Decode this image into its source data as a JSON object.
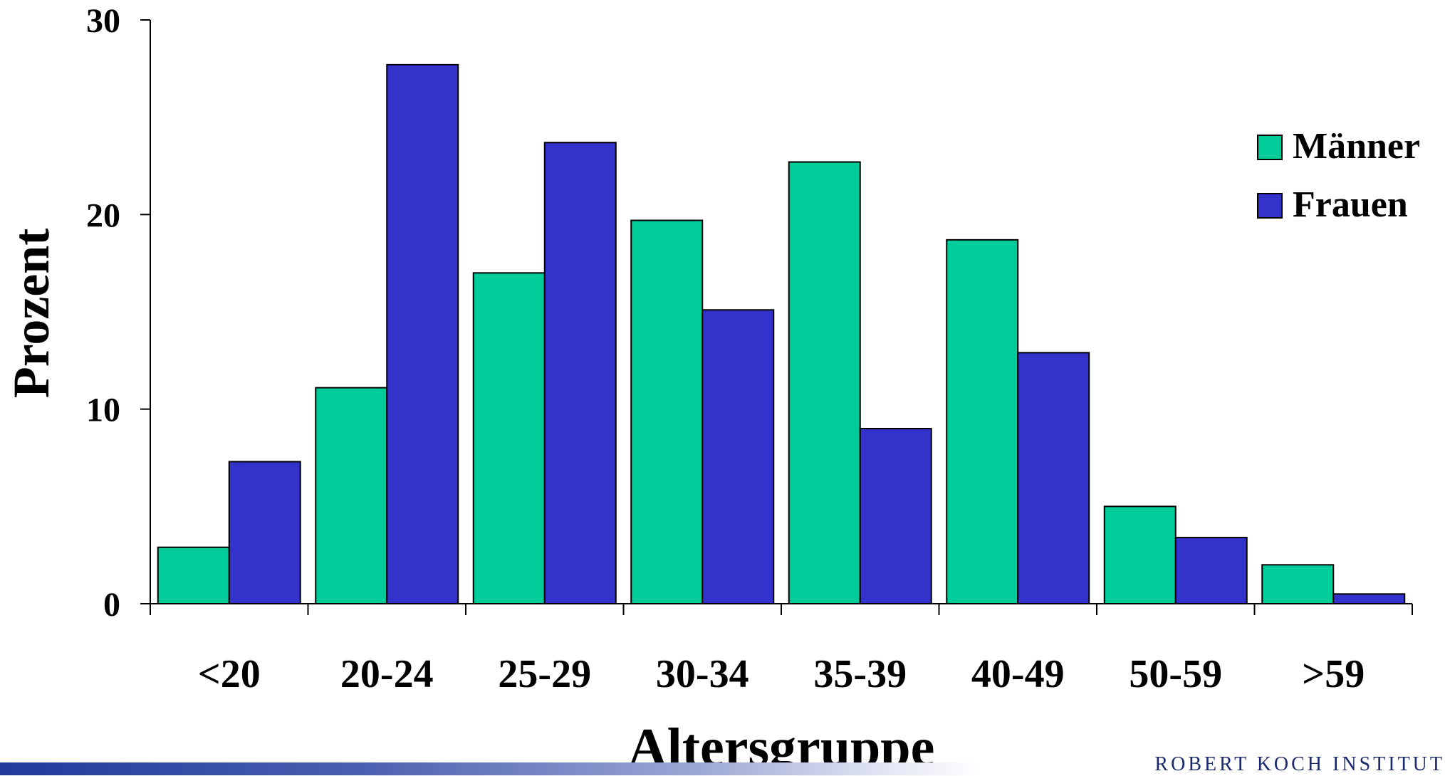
{
  "chart_data": {
    "type": "bar",
    "title": "",
    "xlabel": "Altersgruppe",
    "ylabel": "Prozent",
    "ylim": [
      0,
      30
    ],
    "yticks": [
      "0",
      "10",
      "20",
      "30"
    ],
    "categories": [
      "<20",
      "20-24",
      "25-29",
      "30-34",
      "35-39",
      "40-49",
      "50-59",
      ">59"
    ],
    "series": [
      {
        "name": "Männer",
        "color": "#00cc99",
        "values": [
          2.9,
          11.1,
          17.0,
          19.7,
          22.7,
          18.7,
          5.0,
          2.0
        ]
      },
      {
        "name": "Frauen",
        "color": "#3333cc",
        "values": [
          7.3,
          27.7,
          23.7,
          15.1,
          9.0,
          12.9,
          3.4,
          0.5
        ]
      }
    ],
    "legend_position": "top-right",
    "grid": false
  },
  "footer": {
    "logo_text": "ROBERT KOCH INSTITUT"
  }
}
